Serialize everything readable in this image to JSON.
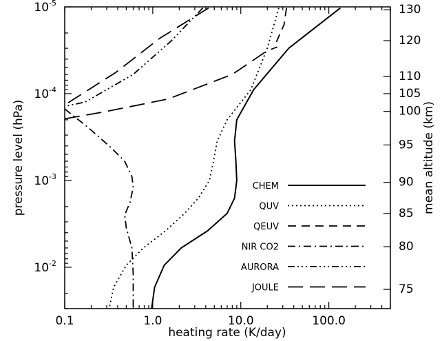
{
  "chart_data": {
    "type": "line",
    "xlabel": "heating rate (K/day)",
    "ylabel": "pressure level (hPa)",
    "y2label": "mean altitude (km)",
    "xscale": "log",
    "yscale": "log",
    "y_inverted": true,
    "xlim": [
      0.1,
      500
    ],
    "ylim": [
      0.03,
      1e-05
    ],
    "grid": false,
    "legend_position": "lower-right",
    "x_ticks": [
      {
        "value": 0.1,
        "label": "0.1"
      },
      {
        "value": 1,
        "label": "1.0"
      },
      {
        "value": 10,
        "label": "10.0"
      },
      {
        "value": 100,
        "label": "100.0"
      }
    ],
    "y_ticks": [
      {
        "value": 1e-05,
        "label": "10",
        "exp": "-5"
      },
      {
        "value": 0.0001,
        "label": "10",
        "exp": "-4"
      },
      {
        "value": 0.001,
        "label": "10",
        "exp": "-3"
      },
      {
        "value": 0.01,
        "label": "10",
        "exp": "-2"
      }
    ],
    "altitude_ticks": [
      {
        "km": 130,
        "pressure": 1.08e-05
      },
      {
        "km": 120,
        "pressure": 2.45e-05
      },
      {
        "km": 110,
        "pressure": 6.35e-05
      },
      {
        "km": 105,
        "pressure": 0.0001
      },
      {
        "km": 100,
        "pressure": 0.00016
      },
      {
        "km": 95,
        "pressure": 0.00039
      },
      {
        "km": 90,
        "pressure": 0.00105
      },
      {
        "km": 85,
        "pressure": 0.0024
      },
      {
        "km": 80,
        "pressure": 0.0058
      },
      {
        "km": 75,
        "pressure": 0.018
      }
    ],
    "series": [
      {
        "name": "CHEM",
        "dash": "solid",
        "x": [
          135,
          35,
          14,
          9,
          8.5,
          8.8,
          9,
          8.5,
          7,
          4.2,
          2.1,
          1.35,
          1.05,
          0.97
        ],
        "y": [
          1.03e-05,
          3e-05,
          9e-05,
          0.0002,
          0.00035,
          0.0006,
          0.001,
          0.0016,
          0.0024,
          0.0038,
          0.006,
          0.0095,
          0.017,
          0.03
        ]
      },
      {
        "name": "QUV",
        "dash": "dotted",
        "x": [
          27,
          20,
          13,
          7,
          5.4,
          4.9,
          4.4,
          3.3,
          2.3,
          1.4,
          0.78,
          0.5,
          0.36,
          0.32
        ],
        "y": [
          1.03e-05,
          3e-05,
          9e-05,
          0.0002,
          0.00035,
          0.0006,
          0.001,
          0.0016,
          0.0024,
          0.0038,
          0.006,
          0.0095,
          0.017,
          0.03
        ]
      },
      {
        "name": "QEUV",
        "dash": "dashed",
        "x": [
          33,
          31,
          26,
          24
        ],
        "y": [
          1.03e-05,
          1.6e-05,
          2.4e-05,
          2.9e-05
        ]
      },
      {
        "name": "NIR CO2",
        "dash": "dashdot",
        "x": [
          0.1,
          0.18,
          0.32,
          0.48,
          0.58,
          0.6,
          0.55,
          0.48,
          0.5,
          0.58,
          0.6,
          0.6
        ],
        "y": [
          0.00015,
          0.00024,
          0.0004,
          0.0006,
          0.0009,
          0.0012,
          0.0018,
          0.0025,
          0.0035,
          0.006,
          0.012,
          0.03
        ]
      },
      {
        "name": "AURORA",
        "dash": "dashdotdotdot",
        "x": [
          3.7,
          1.6,
          0.6,
          0.17,
          0.1
        ],
        "y": [
          1.03e-05,
          2.5e-05,
          6e-05,
          0.000125,
          0.00014
        ]
      },
      {
        "name": "JOULE",
        "dash": "longdash",
        "x": [
          4.3,
          1.2,
          0.38,
          0.12,
          0.1
        ],
        "y": [
          1.03e-05,
          2.3e-05,
          5.7e-05,
          0.00012,
          0.000135
        ]
      },
      {
        "name": "",
        "dash": "longdash",
        "x": [
          0.1,
          0.3,
          1.5,
          8,
          20,
          26
        ],
        "y": [
          0.000195,
          0.00016,
          0.000115,
          6e-05,
          3.2e-05,
          2.9e-05
        ]
      }
    ],
    "legend": [
      {
        "name": "CHEM",
        "dash": "solid"
      },
      {
        "name": "QUV",
        "dash": "dotted"
      },
      {
        "name": "QEUV",
        "dash": "dashed"
      },
      {
        "name": "NIR CO2",
        "dash": "dashdot"
      },
      {
        "name": "AURORA",
        "dash": "dashdotdotdot"
      },
      {
        "name": "JOULE",
        "dash": "longdash"
      }
    ]
  }
}
